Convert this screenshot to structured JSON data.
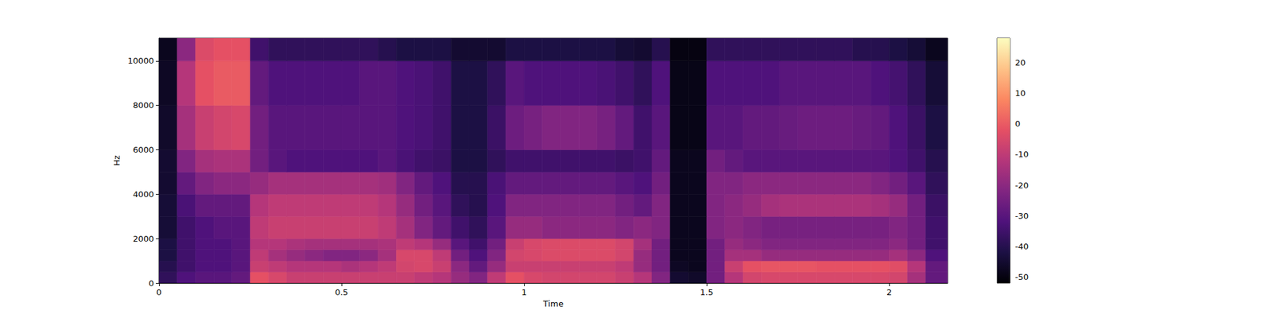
{
  "chart_data": {
    "type": "heatmap",
    "xlabel": "Time",
    "ylabel": "Hz",
    "xlim": [
      0,
      2.16
    ],
    "xticks": [
      0,
      0.5,
      1,
      1.5,
      2
    ],
    "ylim": [
      0,
      11025
    ],
    "yticks": [
      0,
      2000,
      4000,
      6000,
      8000,
      10000
    ],
    "grid": false,
    "time_bins": [
      0,
      0.05,
      0.1,
      0.15,
      0.2,
      0.25,
      0.3,
      0.35,
      0.4,
      0.45,
      0.5,
      0.55,
      0.6,
      0.65,
      0.7,
      0.75,
      0.8,
      0.85,
      0.9,
      0.95,
      1,
      1.05,
      1.1,
      1.15,
      1.2,
      1.25,
      1.3,
      1.35,
      1.4,
      1.45,
      1.5,
      1.55,
      1.6,
      1.65,
      1.7,
      1.75,
      1.8,
      1.85,
      1.9,
      1.95,
      2,
      2.05,
      2.1,
      2.16
    ],
    "freq_bins": [
      0,
      500,
      1000,
      1500,
      2000,
      3000,
      4000,
      5000,
      6000,
      8000,
      10000,
      11025
    ],
    "cells": [
      [
        -38,
        -32,
        -30,
        -30,
        -28,
        -2,
        -5,
        -8,
        -8,
        -8,
        -8,
        -8,
        -8,
        -8,
        -10,
        -12,
        -18,
        -22,
        -10,
        -2,
        -5,
        -6,
        -6,
        -6,
        -6,
        -8,
        -12,
        -22,
        -45,
        -46,
        -25,
        -12,
        -6,
        -5,
        -5,
        -5,
        -5,
        -5,
        -5,
        -5,
        -6,
        -15,
        -28
      ],
      [
        -40,
        -35,
        -32,
        -32,
        -30,
        -8,
        -10,
        -12,
        -12,
        -12,
        -14,
        -12,
        -10,
        -6,
        -5,
        -8,
        -20,
        -28,
        -18,
        -8,
        -8,
        -8,
        -8,
        -8,
        -8,
        -10,
        -18,
        -25,
        -47,
        -48,
        -25,
        -8,
        -2,
        -1,
        -1,
        -1,
        -2,
        -2,
        -2,
        -2,
        -3,
        -12,
        -28
      ],
      [
        -42,
        -35,
        -32,
        -32,
        -30,
        -10,
        -15,
        -18,
        -20,
        -22,
        -22,
        -20,
        -15,
        -5,
        -5,
        -10,
        -25,
        -32,
        -22,
        -6,
        -5,
        -4,
        -4,
        -4,
        -4,
        -6,
        -18,
        -25,
        -48,
        -48,
        -25,
        -15,
        -15,
        -18,
        -18,
        -18,
        -18,
        -18,
        -18,
        -18,
        -15,
        -20,
        -32
      ],
      [
        -42,
        -35,
        -32,
        -32,
        -30,
        -12,
        -12,
        -14,
        -15,
        -15,
        -15,
        -15,
        -14,
        -10,
        -12,
        -18,
        -30,
        -35,
        -25,
        -8,
        -5,
        -4,
        -4,
        -4,
        -4,
        -6,
        -15,
        -25,
        -48,
        -48,
        -25,
        -18,
        -20,
        -22,
        -22,
        -22,
        -22,
        -22,
        -22,
        -22,
        -20,
        -25,
        -35
      ],
      [
        -44,
        -35,
        -32,
        -30,
        -30,
        -10,
        -8,
        -8,
        -8,
        -8,
        -8,
        -8,
        -10,
        -15,
        -22,
        -28,
        -35,
        -38,
        -30,
        -18,
        -18,
        -20,
        -20,
        -20,
        -20,
        -22,
        -20,
        -22,
        -48,
        -48,
        -22,
        -20,
        -22,
        -24,
        -24,
        -24,
        -24,
        -24,
        -24,
        -24,
        -22,
        -25,
        -35
      ],
      [
        -44,
        -33,
        -28,
        -28,
        -28,
        -12,
        -10,
        -10,
        -10,
        -10,
        -10,
        -10,
        -12,
        -18,
        -25,
        -30,
        -38,
        -40,
        -32,
        -22,
        -22,
        -22,
        -22,
        -22,
        -22,
        -25,
        -28,
        -22,
        -48,
        -48,
        -22,
        -20,
        -18,
        -15,
        -14,
        -14,
        -14,
        -14,
        -14,
        -15,
        -18,
        -25,
        -36
      ],
      [
        -45,
        -28,
        -22,
        -20,
        -20,
        -18,
        -15,
        -15,
        -15,
        -15,
        -15,
        -15,
        -16,
        -22,
        -28,
        -32,
        -40,
        -40,
        -33,
        -28,
        -28,
        -28,
        -28,
        -28,
        -28,
        -30,
        -32,
        -25,
        -48,
        -48,
        -22,
        -22,
        -20,
        -20,
        -20,
        -20,
        -20,
        -20,
        -20,
        -22,
        -25,
        -30,
        -38
      ],
      [
        -45,
        -22,
        -15,
        -14,
        -14,
        -25,
        -30,
        -32,
        -32,
        -32,
        -32,
        -32,
        -30,
        -33,
        -35,
        -36,
        -42,
        -42,
        -38,
        -35,
        -35,
        -35,
        -35,
        -35,
        -35,
        -36,
        -35,
        -28,
        -48,
        -48,
        -25,
        -28,
        -30,
        -30,
        -30,
        -30,
        -30,
        -30,
        -30,
        -30,
        -32,
        -35,
        -40
      ],
      [
        -46,
        -15,
        -8,
        -6,
        -5,
        -25,
        -30,
        -30,
        -30,
        -30,
        -30,
        -30,
        -30,
        -32,
        -33,
        -35,
        -42,
        -42,
        -36,
        -26,
        -24,
        -22,
        -22,
        -22,
        -24,
        -28,
        -35,
        -30,
        -49,
        -49,
        -30,
        -30,
        -28,
        -28,
        -27,
        -26,
        -26,
        -26,
        -27,
        -28,
        -32,
        -36,
        -42
      ],
      [
        -47,
        -12,
        -2,
        0,
        0,
        -28,
        -32,
        -32,
        -32,
        -32,
        -32,
        -30,
        -30,
        -32,
        -33,
        -35,
        -42,
        -42,
        -38,
        -30,
        -32,
        -32,
        -32,
        -32,
        -33,
        -35,
        -38,
        -32,
        -49,
        -49,
        -32,
        -32,
        -32,
        -32,
        -30,
        -30,
        -30,
        -30,
        -30,
        -32,
        -34,
        -38,
        -44
      ],
      [
        -48,
        -20,
        -4,
        -2,
        -2,
        -35,
        -38,
        -38,
        -38,
        -38,
        -38,
        -38,
        -40,
        -42,
        -42,
        -42,
        -45,
        -45,
        -45,
        -42,
        -42,
        -42,
        -42,
        -42,
        -42,
        -44,
        -45,
        -40,
        -50,
        -50,
        -38,
        -38,
        -38,
        -38,
        -38,
        -38,
        -38,
        -38,
        -40,
        -40,
        -42,
        -44,
        -48
      ]
    ],
    "colorbar": {
      "lim": [
        -52,
        28
      ],
      "ticks": [
        -50,
        -40,
        -30,
        -20,
        -10,
        0,
        10,
        20
      ]
    }
  }
}
